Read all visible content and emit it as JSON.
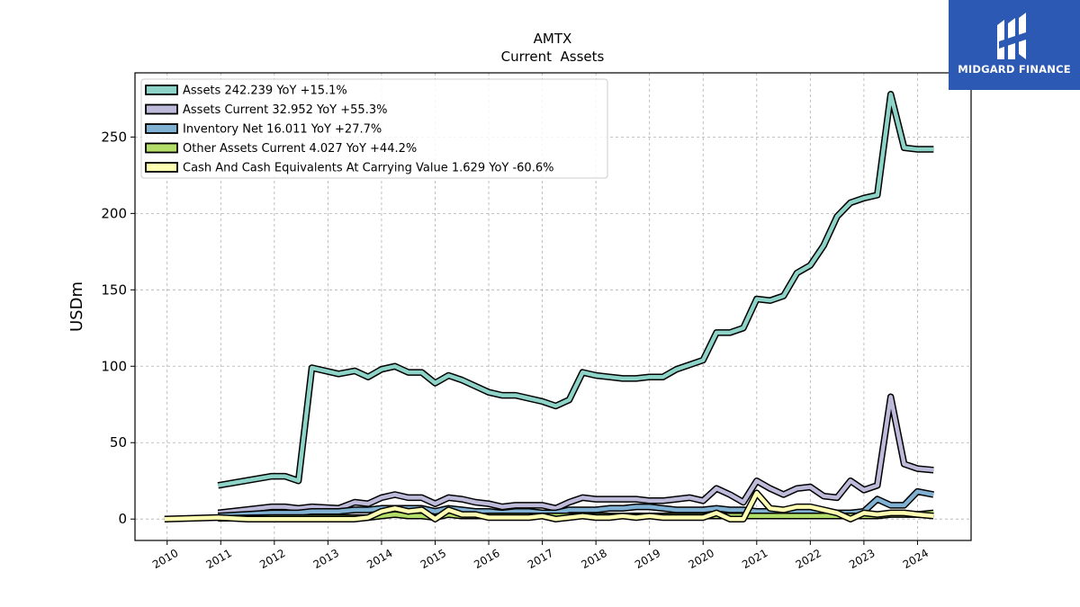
{
  "chart_data": {
    "type": "line",
    "title": "AMTX",
    "subtitle": "Current  Assets",
    "ylabel": "USDm",
    "xlabel": "",
    "xlim": [
      2009.4,
      2025.0
    ],
    "ylim": [
      -14,
      292
    ],
    "yticks": [
      0,
      50,
      100,
      150,
      200,
      250
    ],
    "xticks": [
      2010,
      2011,
      2012,
      2013,
      2014,
      2015,
      2016,
      2017,
      2018,
      2019,
      2020,
      2021,
      2022,
      2023,
      2024
    ],
    "grid": true,
    "legend_position": "top-left",
    "series": [
      {
        "name": "Assets",
        "legend": "Assets  242.239 YoY +15.1%",
        "color": "#8dd3c7",
        "x": [
          2010.95,
          2011.95,
          2012.2,
          2012.45,
          2012.7,
          2013.2,
          2013.5,
          2013.75,
          2014.0,
          2014.25,
          2014.5,
          2014.75,
          2015.0,
          2015.25,
          2015.5,
          2015.75,
          2016.0,
          2016.25,
          2016.5,
          2016.75,
          2017.0,
          2017.25,
          2017.5,
          2017.75,
          2018.0,
          2018.25,
          2018.5,
          2018.75,
          2019.0,
          2019.25,
          2019.5,
          2019.75,
          2020.0,
          2020.25,
          2020.5,
          2020.75,
          2021.0,
          2021.25,
          2021.5,
          2021.75,
          2022.0,
          2022.25,
          2022.5,
          2022.75,
          2023.0,
          2023.25,
          2023.5,
          2023.75,
          2024.0,
          2024.3
        ],
        "values": [
          22,
          28,
          28,
          25,
          99,
          95,
          97,
          93,
          98,
          100,
          96,
          96,
          89,
          94,
          91,
          87,
          83,
          81,
          81,
          79,
          77,
          74,
          78,
          96,
          94,
          93,
          92,
          92,
          93,
          93,
          98,
          101,
          104,
          122,
          122,
          125,
          144,
          143,
          146,
          161,
          166,
          179,
          198,
          207,
          210,
          212,
          278,
          243,
          242,
          242
        ]
      },
      {
        "name": "Assets Current",
        "legend": "Assets Current  32.952 YoY +55.3%",
        "color": "#bebada",
        "x": [
          2010.95,
          2011.95,
          2012.2,
          2012.45,
          2012.7,
          2013.2,
          2013.5,
          2013.75,
          2014.0,
          2014.25,
          2014.5,
          2014.75,
          2015.0,
          2015.25,
          2015.5,
          2015.75,
          2016.0,
          2016.25,
          2016.5,
          2016.75,
          2017.0,
          2017.25,
          2017.5,
          2017.75,
          2018.0,
          2018.25,
          2018.5,
          2018.75,
          2019.0,
          2019.25,
          2019.5,
          2019.75,
          2020.0,
          2020.25,
          2020.5,
          2020.75,
          2021.0,
          2021.25,
          2021.5,
          2021.75,
          2022.0,
          2022.25,
          2022.5,
          2022.75,
          2023.0,
          2023.25,
          2023.5,
          2023.75,
          2024.0,
          2024.3
        ],
        "values": [
          4,
          8,
          8,
          7,
          8,
          7,
          11,
          10,
          14,
          16,
          14,
          14,
          10,
          14,
          13,
          11,
          10,
          8,
          9,
          9,
          9,
          7,
          11,
          14,
          13,
          13,
          13,
          13,
          12,
          12,
          13,
          14,
          12,
          20,
          16,
          11,
          25,
          20,
          16,
          20,
          21,
          15,
          14,
          25,
          19,
          22,
          80,
          36,
          33,
          32
        ]
      },
      {
        "name": "Inventory Net",
        "legend": "Inventory Net  16.011 YoY +27.7%",
        "color": "#80b1d3",
        "x": [
          2010.95,
          2011.95,
          2012.2,
          2012.45,
          2012.7,
          2013.2,
          2013.5,
          2013.75,
          2014.0,
          2014.25,
          2014.5,
          2014.75,
          2015.0,
          2015.25,
          2015.5,
          2015.75,
          2016.0,
          2016.25,
          2016.5,
          2016.75,
          2017.0,
          2017.25,
          2017.5,
          2017.75,
          2018.0,
          2018.25,
          2018.5,
          2018.75,
          2019.0,
          2019.25,
          2019.5,
          2019.75,
          2020.0,
          2020.25,
          2020.5,
          2020.75,
          2021.0,
          2021.25,
          2021.5,
          2021.75,
          2022.0,
          2022.25,
          2022.5,
          2022.75,
          2023.0,
          2023.25,
          2023.5,
          2023.75,
          2024.0,
          2024.3
        ],
        "values": [
          2,
          4,
          4,
          4,
          5,
          5,
          6,
          6,
          7,
          7,
          7,
          7,
          5,
          7,
          6,
          5,
          5,
          4,
          5,
          5,
          4,
          4,
          6,
          6,
          6,
          7,
          7,
          8,
          8,
          7,
          6,
          6,
          6,
          7,
          6,
          6,
          5,
          5,
          5,
          5,
          5,
          5,
          4,
          4,
          5,
          13,
          9,
          9,
          18,
          16
        ]
      },
      {
        "name": "Other Assets Current",
        "legend": "Other Assets Current  4.027 YoY +44.2%",
        "color": "#b3de69",
        "x": [
          2010.95,
          2011.95,
          2012.2,
          2012.45,
          2012.7,
          2013.2,
          2013.5,
          2013.75,
          2014.0,
          2014.25,
          2014.5,
          2014.75,
          2015.0,
          2015.25,
          2015.5,
          2015.75,
          2016.0,
          2016.25,
          2016.5,
          2016.75,
          2017.0,
          2017.25,
          2017.5,
          2017.75,
          2018.0,
          2018.25,
          2018.5,
          2018.75,
          2019.0,
          2019.25,
          2019.5,
          2019.75,
          2020.0,
          2020.25,
          2020.5,
          2020.75,
          2021.0,
          2021.25,
          2021.5,
          2021.75,
          2022.0,
          2022.25,
          2022.5,
          2022.75,
          2023.0,
          2023.25,
          2023.5,
          2023.75,
          2024.0,
          2024.3
        ],
        "values": [
          0.5,
          1,
          1,
          1,
          1,
          1,
          1,
          1,
          2,
          3,
          2,
          2,
          1,
          3,
          2,
          2,
          2,
          2,
          2,
          2,
          2,
          2,
          2,
          2,
          2,
          2,
          2,
          2,
          2,
          2,
          2,
          2,
          2,
          2,
          2,
          2,
          2,
          2,
          2,
          2,
          2,
          2,
          2,
          2,
          2,
          2,
          3,
          3,
          3,
          4
        ]
      },
      {
        "name": "Cash And Cash Equivalents At Carrying Value",
        "legend": "Cash And Cash Equivalents At Carrying Value  1.629 YoY -60.6%",
        "color": "#ffffb3",
        "x": [
          2009.95,
          2010.95,
          2011.5,
          2011.95,
          2012.2,
          2012.45,
          2012.7,
          2013.2,
          2013.5,
          2013.75,
          2014.0,
          2014.25,
          2014.5,
          2014.75,
          2015.0,
          2015.25,
          2015.5,
          2015.75,
          2016.0,
          2016.25,
          2016.5,
          2016.75,
          2017.0,
          2017.25,
          2017.5,
          2017.75,
          2018.0,
          2018.25,
          2018.5,
          2018.75,
          2019.0,
          2019.25,
          2019.5,
          2019.75,
          2020.0,
          2020.25,
          2020.5,
          2020.75,
          2021.0,
          2021.25,
          2021.5,
          2021.75,
          2022.0,
          2022.25,
          2022.5,
          2022.75,
          2023.0,
          2023.25,
          2023.5,
          2023.75,
          2024.0,
          2024.3
        ],
        "values": [
          0,
          1,
          0,
          0,
          0,
          0,
          0,
          0,
          0,
          1,
          5,
          7,
          5,
          6,
          0,
          6,
          3,
          3,
          1,
          1,
          1,
          1,
          2,
          0,
          1,
          2,
          1,
          1,
          2,
          1,
          2,
          1,
          1,
          1,
          1,
          4,
          0,
          0,
          17,
          7,
          6,
          8,
          8,
          6,
          4,
          0,
          4,
          3,
          4,
          4,
          3,
          2
        ]
      }
    ]
  },
  "brand": {
    "name": "MIDGARD FINANCE",
    "color": "#2b59b3"
  }
}
